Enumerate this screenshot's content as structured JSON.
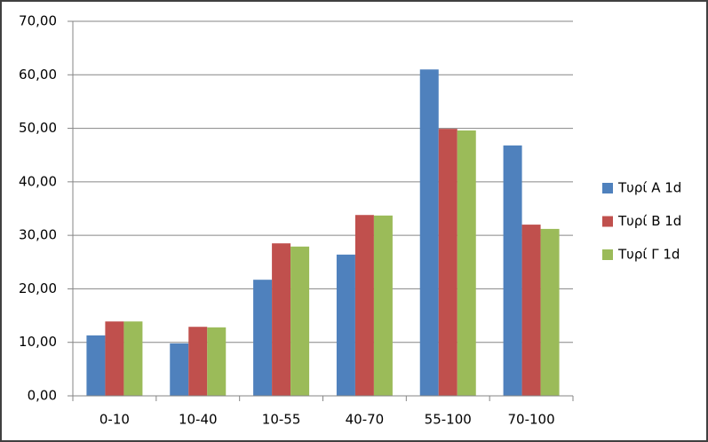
{
  "chart_data": {
    "type": "bar",
    "categories": [
      "0-10",
      "10-40",
      "10-55",
      "40-70",
      "55-100",
      "70-100"
    ],
    "series": [
      {
        "name": "Τυρί Α 1d",
        "color": "#4f81bd",
        "values": [
          11.3,
          9.8,
          21.7,
          26.4,
          61.0,
          46.8
        ]
      },
      {
        "name": "Τυρί Β 1d",
        "color": "#c0504d",
        "values": [
          13.9,
          12.9,
          28.5,
          33.8,
          49.9,
          32.0
        ]
      },
      {
        "name": "Τυρί Γ 1d",
        "color": "#9bbb59",
        "values": [
          13.9,
          12.8,
          27.9,
          33.7,
          49.6,
          31.2
        ]
      }
    ],
    "ylim": [
      0,
      70
    ],
    "yticks": [
      {
        "value": 0,
        "label": "0,00"
      },
      {
        "value": 10,
        "label": "10,00"
      },
      {
        "value": 20,
        "label": "20,00"
      },
      {
        "value": 30,
        "label": "30,00"
      },
      {
        "value": 40,
        "label": "40,00"
      },
      {
        "value": 50,
        "label": "50,00"
      },
      {
        "value": 60,
        "label": "60,00"
      },
      {
        "value": 70,
        "label": "70,00"
      }
    ],
    "grid": true,
    "legend": "right"
  }
}
